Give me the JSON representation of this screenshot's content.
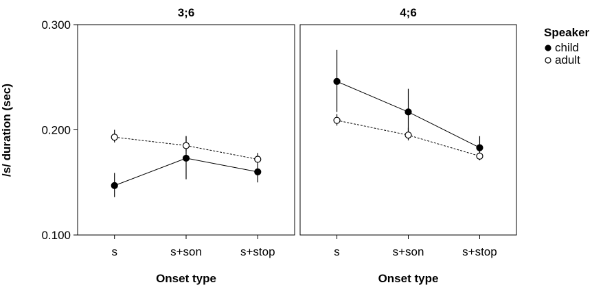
{
  "chart_data": {
    "type": "line",
    "ylabel": "/s/ duration (sec)",
    "ylim": [
      0.1,
      0.3
    ],
    "yticks": [
      "0.100",
      "0.200",
      "0.300"
    ],
    "ytick_values": [
      0.1,
      0.2,
      0.3
    ],
    "categories": [
      "s",
      "s+son",
      "s+stop"
    ],
    "xlabel": "Onset type",
    "legend": {
      "title": "Speaker",
      "placement": "right",
      "entries": [
        {
          "name": "child",
          "marker": "filled-circle",
          "line": "solid"
        },
        {
          "name": "adult",
          "marker": "open-circle",
          "line": "dashed"
        }
      ]
    },
    "panels": [
      {
        "title": "3;6",
        "series": [
          {
            "name": "child",
            "values": [
              0.147,
              0.173,
              0.16
            ],
            "error_low": [
              0.136,
              0.153,
              0.15
            ],
            "error_high": [
              0.159,
              0.194,
              0.168
            ]
          },
          {
            "name": "adult",
            "values": [
              0.193,
              0.185,
              0.172
            ],
            "error_low": [
              0.188,
              0.18,
              0.168
            ],
            "error_high": [
              0.2,
              0.194,
              0.178
            ]
          }
        ]
      },
      {
        "title": "4;6",
        "series": [
          {
            "name": "child",
            "values": [
              0.246,
              0.217,
              0.183
            ],
            "error_low": [
              0.217,
              0.196,
              0.174
            ],
            "error_high": [
              0.276,
              0.239,
              0.194
            ]
          },
          {
            "name": "adult",
            "values": [
              0.209,
              0.195,
              0.175
            ],
            "error_low": [
              0.204,
              0.19,
              0.171
            ],
            "error_high": [
              0.215,
              0.202,
              0.179
            ]
          }
        ]
      }
    ]
  }
}
